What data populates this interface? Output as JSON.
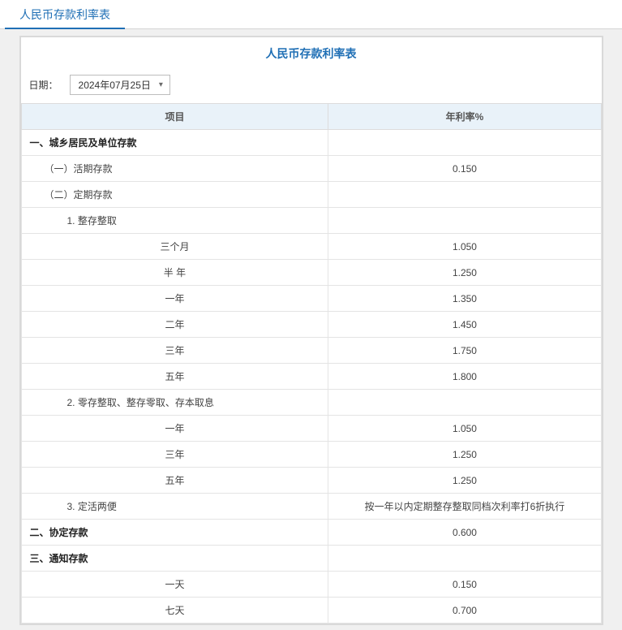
{
  "tab": {
    "label": "人民币存款利率表"
  },
  "panel": {
    "title": "人民币存款利率表",
    "date_label": "日期：",
    "date_value": "2024年07月25日"
  },
  "table": {
    "columns": [
      "项目",
      "年利率%"
    ],
    "col_widths": [
      "53%",
      "47%"
    ],
    "header_bg": "#e9f2f9",
    "border_color": "#e4e4e4",
    "rows": [
      {
        "item": "一、城乡居民及单位存款",
        "rate": "",
        "css": "section"
      },
      {
        "item": "（一）活期存款",
        "rate": "0.150",
        "css": "indent-1"
      },
      {
        "item": "（二）定期存款",
        "rate": "",
        "css": "indent-1"
      },
      {
        "item": "1. 整存整取",
        "rate": "",
        "css": "indent-2"
      },
      {
        "item": "三个月",
        "rate": "1.050",
        "css": "indent-3"
      },
      {
        "item": "半 年",
        "rate": "1.250",
        "css": "indent-3"
      },
      {
        "item": "一年",
        "rate": "1.350",
        "css": "indent-3"
      },
      {
        "item": "二年",
        "rate": "1.450",
        "css": "indent-3"
      },
      {
        "item": "三年",
        "rate": "1.750",
        "css": "indent-3"
      },
      {
        "item": "五年",
        "rate": "1.800",
        "css": "indent-3"
      },
      {
        "item": "2. 零存整取、整存零取、存本取息",
        "rate": "",
        "css": "indent-2"
      },
      {
        "item": "一年",
        "rate": "1.050",
        "css": "indent-3"
      },
      {
        "item": "三年",
        "rate": "1.250",
        "css": "indent-3"
      },
      {
        "item": "五年",
        "rate": "1.250",
        "css": "indent-3"
      },
      {
        "item": "3. 定活两便",
        "rate": "按一年以内定期整存整取同档次利率打6折执行",
        "css": "indent-2"
      },
      {
        "item": "二、协定存款",
        "rate": "0.600",
        "css": "section"
      },
      {
        "item": "三、通知存款",
        "rate": "",
        "css": "section"
      },
      {
        "item": "一天",
        "rate": "0.150",
        "css": "indent-3"
      },
      {
        "item": "七天",
        "rate": "0.700",
        "css": "indent-3"
      }
    ]
  },
  "colors": {
    "accent": "#1f6fb5",
    "tab_underline": "#1f6fb5",
    "panel_bg": "#ffffff",
    "outer_bg": "#f0f0f0",
    "panel_border": "#d9d9d9"
  }
}
